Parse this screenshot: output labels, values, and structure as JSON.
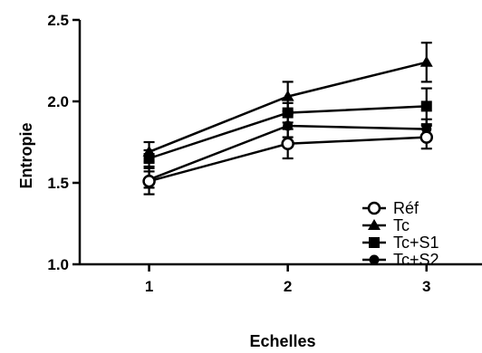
{
  "chart_data": {
    "type": "line",
    "xlabel": "Echelles",
    "ylabel": "Entropie",
    "x": [
      1,
      2,
      3
    ],
    "x_ticks": [
      "1",
      "2",
      "3"
    ],
    "y_ticks": [
      "1.0",
      "1.5",
      "2.0",
      "2.5"
    ],
    "ylim": [
      1.0,
      2.5
    ],
    "xlim": [
      0.5,
      3.4
    ],
    "grid": false,
    "legend_position": "bottom-right",
    "series": [
      {
        "name": "Réf",
        "marker": "open-circle",
        "values": [
          1.51,
          1.74,
          1.78
        ],
        "errors": [
          0.08,
          0.09,
          0.07
        ]
      },
      {
        "name": "Tc",
        "marker": "triangle",
        "values": [
          1.69,
          2.03,
          2.24
        ],
        "errors": [
          0.06,
          0.09,
          0.12
        ]
      },
      {
        "name": "Tc+S1",
        "marker": "square",
        "values": [
          1.65,
          1.93,
          1.97
        ],
        "errors": [
          0.05,
          0.06,
          0.11
        ]
      },
      {
        "name": "Tc+S2",
        "marker": "filled-circle",
        "values": [
          1.52,
          1.85,
          1.83
        ],
        "errors": [
          0.05,
          0.07,
          0.06
        ]
      }
    ]
  }
}
